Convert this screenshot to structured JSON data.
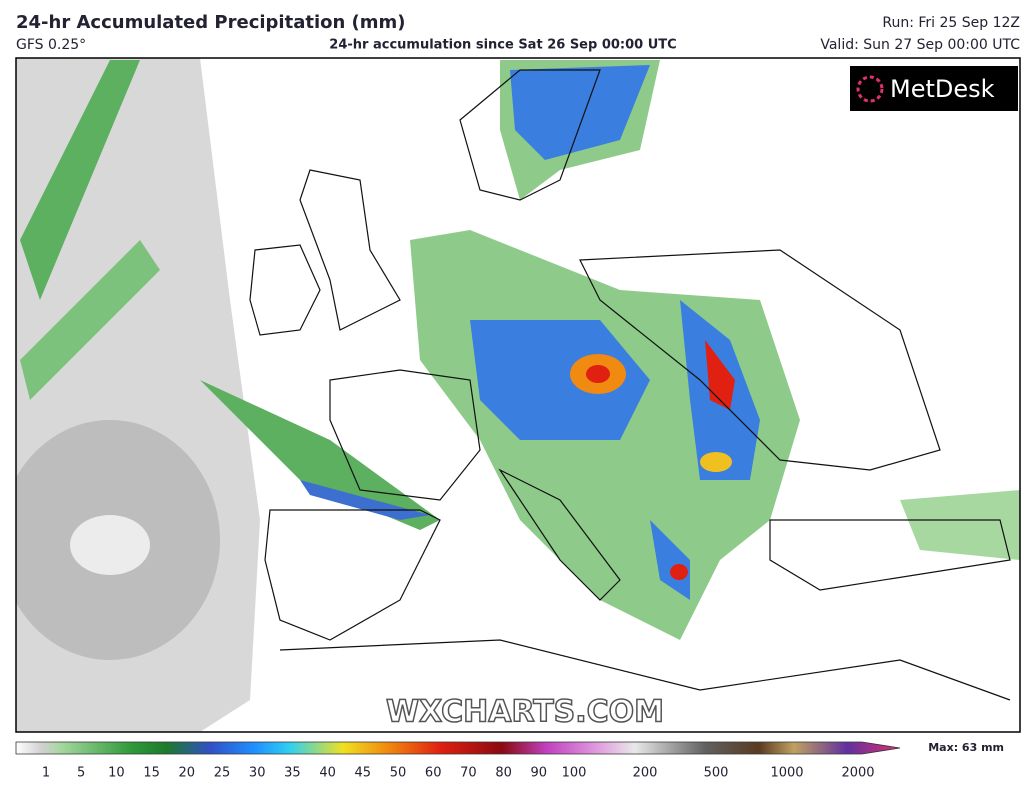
{
  "header": {
    "title": "24-hr Accumulated Precipitation (mm)",
    "model": "GFS 0.25°",
    "subtitle": "24-hr accumulation since Sat 26 Sep 00:00 UTC",
    "run": "Run: Fri 25 Sep 12Z",
    "valid": "Valid: Sun 27 Sep 00:00 UTC"
  },
  "logo": "MetDesk",
  "watermark": "WXCHARTS.COM",
  "legend": {
    "ticks": [
      1,
      5,
      10,
      15,
      20,
      25,
      30,
      35,
      40,
      45,
      50,
      60,
      70,
      80,
      90,
      100,
      200,
      500,
      1000,
      2000
    ],
    "max": "Max: 63 mm"
  }
}
